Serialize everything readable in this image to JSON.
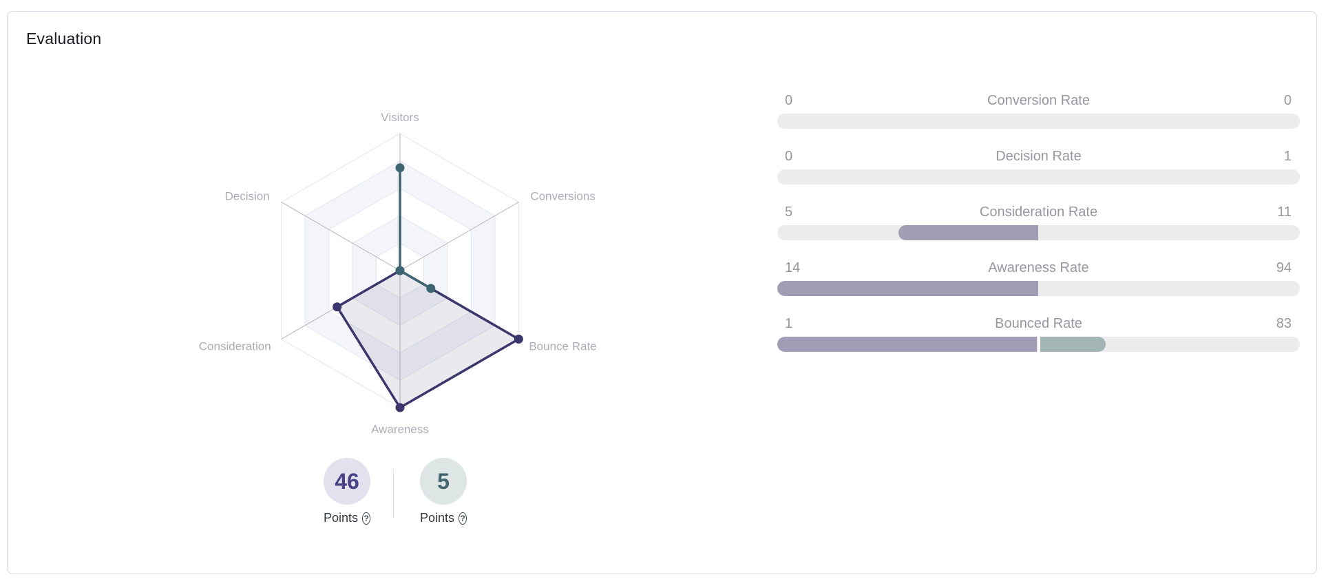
{
  "title": "Evaluation",
  "colors": {
    "card_border": "#d7dae6",
    "radar_grid_line": "#e2e5f1",
    "radar_grid_band": "#f4f5fa",
    "radar_spoke": "#bcbcc2",
    "radar_axis_label": "#abaeba",
    "series_purple": "#3b366b",
    "series_teal": "#3d6571",
    "bar_track": "#ececec",
    "bar_purple": "#a19db5",
    "bar_teal": "#a2b4b4",
    "bar_text": "#97979f"
  },
  "chart_data": [
    {
      "type": "radar",
      "title": "",
      "axes": [
        "Visitors",
        "Conversions",
        "Bounce Rate",
        "Awareness",
        "Consideration",
        "Decision"
      ],
      "rings": 5,
      "value_scale": "fraction of outer ring (0 = center, 1 = outer hexagon)",
      "series": [
        {
          "name": "purple-series",
          "color": "#3b366b",
          "fill": "rgba(76,70,118,0.12)",
          "values": [
            0,
            0,
            1.0,
            1.0,
            0.53,
            0
          ]
        },
        {
          "name": "teal-series",
          "color": "#3d6571",
          "fill": "none",
          "values": [
            0.75,
            0,
            0.26,
            0,
            0,
            0
          ]
        }
      ],
      "legend": "none",
      "grid": "on"
    },
    {
      "type": "bar",
      "orientation": "horizontal-progress",
      "track_color": "#ececec",
      "rows": [
        {
          "label": "Conversion Rate",
          "left_value": "0",
          "right_value": "0",
          "segments": []
        },
        {
          "label": "Decision Rate",
          "left_value": "0",
          "right_value": "1",
          "segments": []
        },
        {
          "label": "Consideration Rate",
          "left_value": "5",
          "right_value": "11",
          "segments": [
            {
              "color": "#a19db5",
              "start_pct": 23.2,
              "width_pct": 26.7,
              "cap": "left",
              "gap_left": false
            }
          ]
        },
        {
          "label": "Awareness Rate",
          "left_value": "14",
          "right_value": "94",
          "segments": [
            {
              "color": "#a19db5",
              "start_pct": 0,
              "width_pct": 49.9,
              "cap": "left",
              "gap_left": false
            }
          ]
        },
        {
          "label": "Bounced Rate",
          "left_value": "1",
          "right_value": "83",
          "segments": [
            {
              "color": "#a19db5",
              "start_pct": 0,
              "width_pct": 49.7,
              "cap": "left",
              "gap_left": false
            },
            {
              "color": "#a2b4b4",
              "start_pct": 49.9,
              "width_pct": 13.0,
              "cap": "right",
              "gap_left": true
            }
          ]
        }
      ]
    }
  ],
  "badges": [
    {
      "value": "46",
      "label": "Points",
      "bg": "#e4e1ef",
      "color": "#494285",
      "icon": "help-circle-icon",
      "icon_glyph": "?"
    },
    {
      "value": "5",
      "label": "Points",
      "bg": "#dee5e5",
      "color": "#42656f",
      "icon": "help-circle-icon",
      "icon_glyph": "?"
    }
  ]
}
